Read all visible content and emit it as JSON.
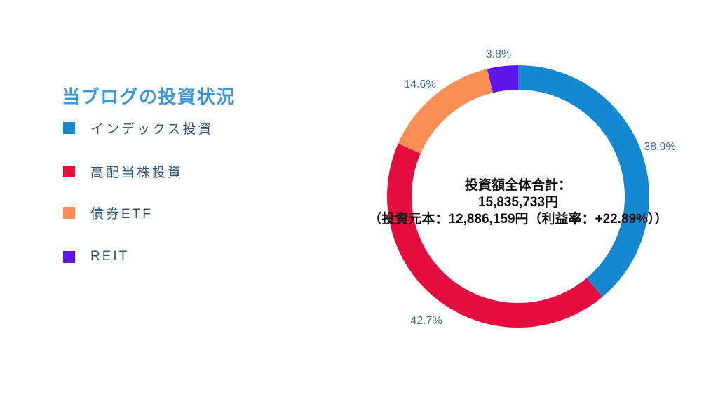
{
  "colors": {
    "background": "#ffffff",
    "title": "#3b97dc",
    "legend_text": "#33567e",
    "percent_label": "#3f709f",
    "center_text": "#0f0f0f"
  },
  "chart_data": {
    "type": "pie",
    "subtype": "donut",
    "title": "当ブログの投資状況",
    "direction": "clockwise",
    "start_angle_deg": 0,
    "legend_position": "left",
    "segments": [
      {
        "label": "インデックス投資",
        "value": 38.9,
        "display": "38.9%",
        "color": "#1489d1"
      },
      {
        "label": "高配当株投資",
        "value": 42.7,
        "display": "42.7%",
        "color": "#e40d3e"
      },
      {
        "label": "債券ETF",
        "value": 14.6,
        "display": "14.6%",
        "color": "#fa8e54"
      },
      {
        "label": "REIT",
        "value": 3.8,
        "display": "3.8%",
        "color": "#5d16eb"
      }
    ],
    "center_text": {
      "line1": "投資額全体合計：",
      "line2": "15,835,733円",
      "line3": "（投資元本：12,886,159円（利益率：+22.89%））"
    }
  }
}
